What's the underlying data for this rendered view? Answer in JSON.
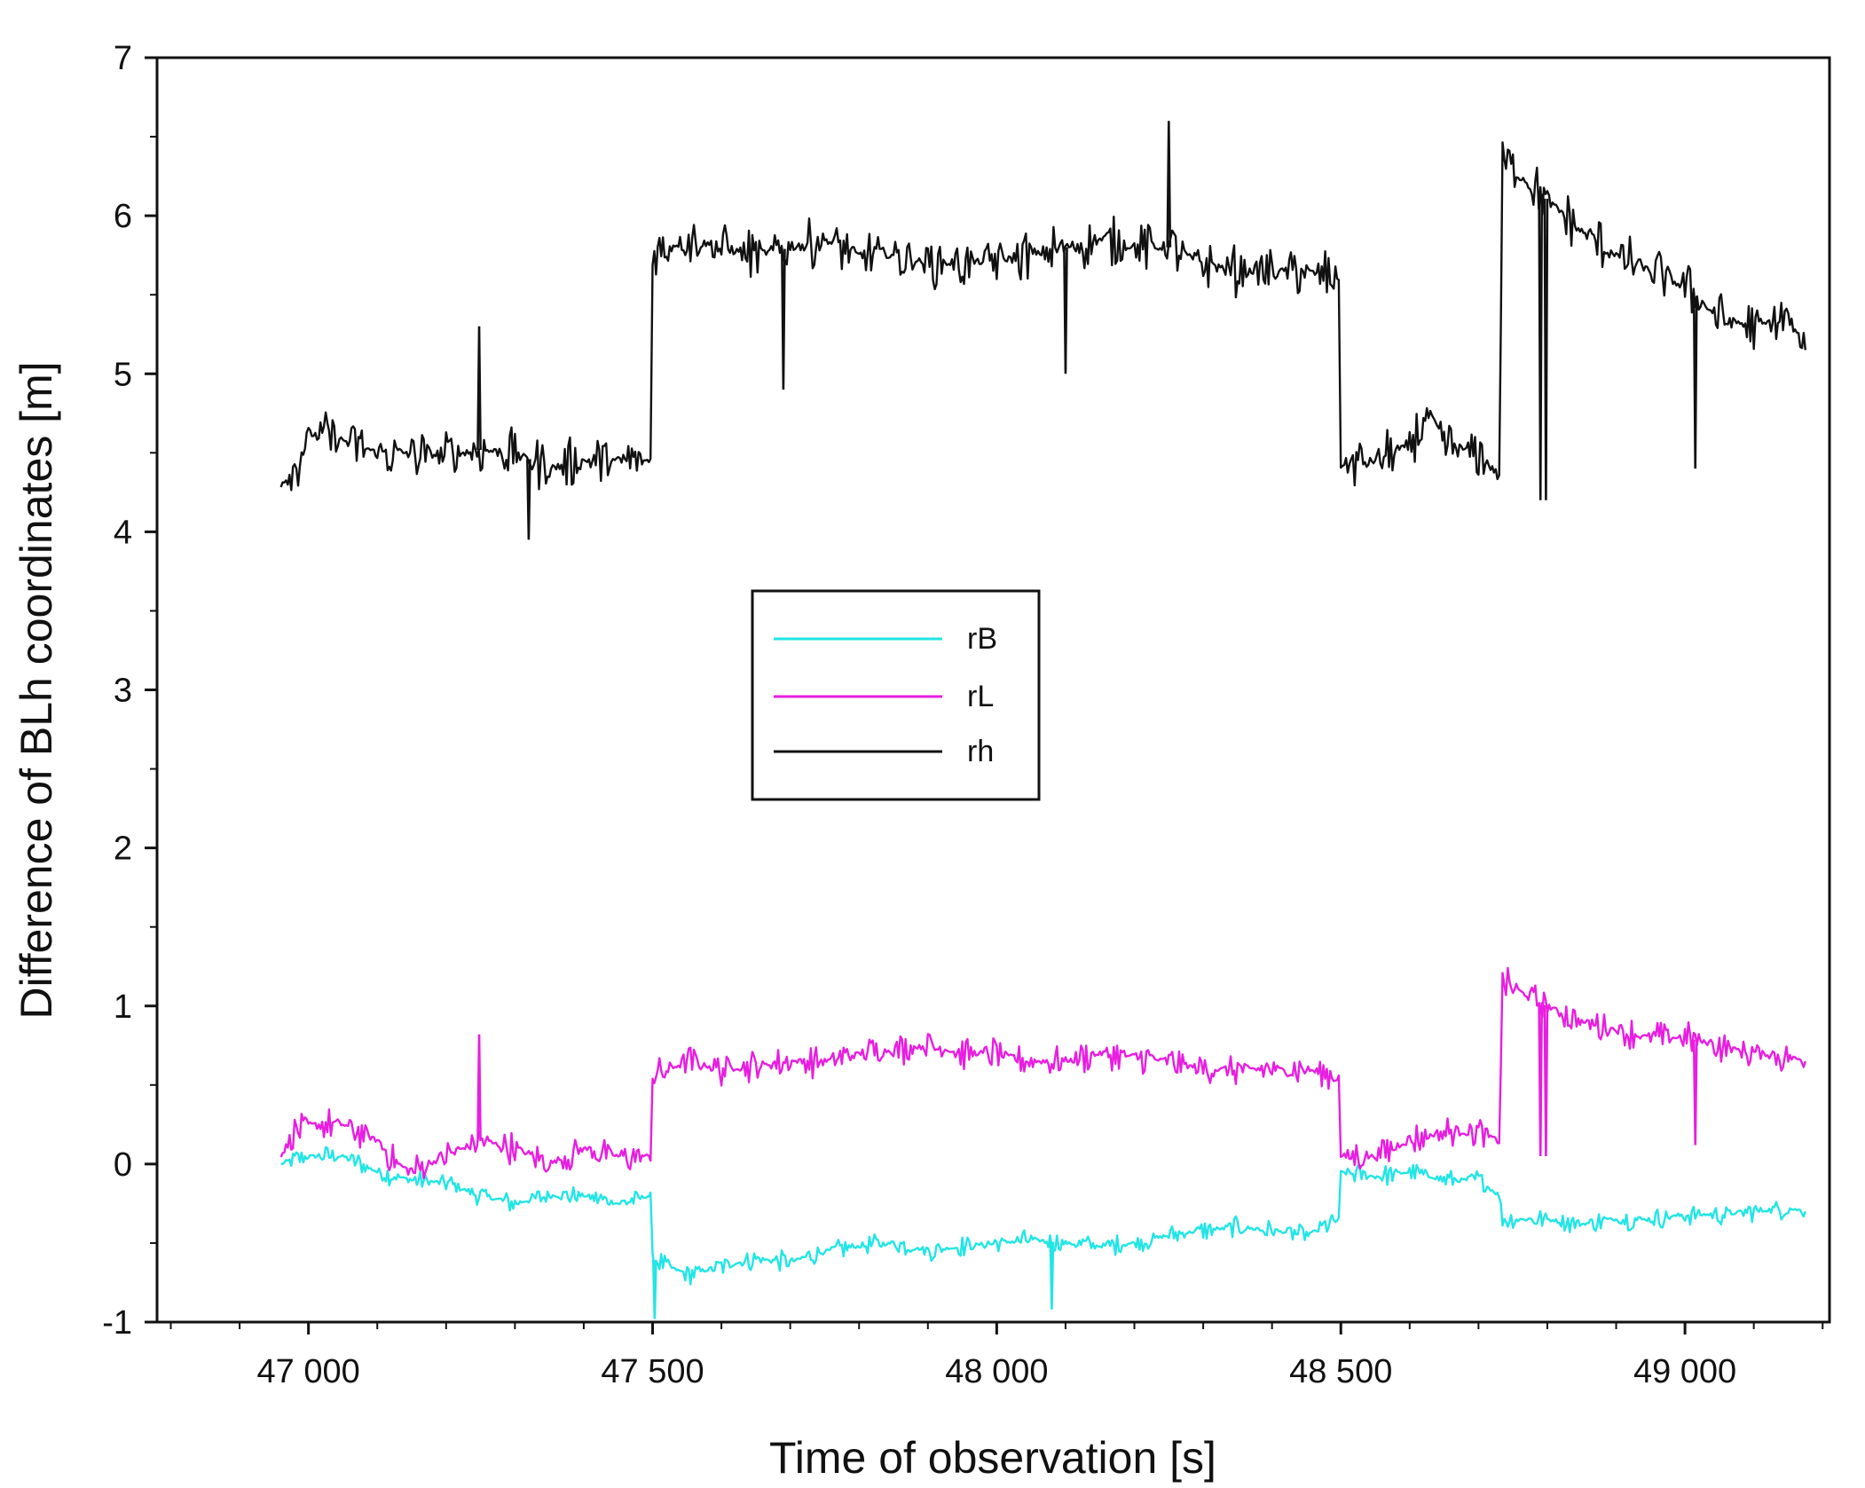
{
  "chart_data": {
    "type": "line",
    "title": "",
    "xlabel": "Time of observation [s]",
    "ylabel": "Difference of BLh coordinates [m]",
    "xlim": [
      46780,
      49210
    ],
    "ylim": [
      -1,
      7
    ],
    "xticks": [
      47000,
      47500,
      48000,
      48500,
      49000
    ],
    "xtick_labels": [
      "47 000",
      "47 500",
      "48 000",
      "48 500",
      "49 000"
    ],
    "yticks": [
      -1,
      0,
      1,
      2,
      3,
      4,
      5,
      6,
      7
    ],
    "ytick_labels": [
      "-1",
      "0",
      "1",
      "2",
      "3",
      "4",
      "5",
      "6",
      "7"
    ],
    "grid": false,
    "legend": {
      "position": "center-left",
      "entries": [
        "rB",
        "rL",
        "rh"
      ]
    },
    "series": [
      {
        "name": "rB",
        "color": "#22e5e5",
        "noise": 0.07,
        "points": [
          [
            46960,
            0.0
          ],
          [
            47000,
            0.05
          ],
          [
            47050,
            0.05
          ],
          [
            47100,
            -0.05
          ],
          [
            47150,
            -0.1
          ],
          [
            47200,
            -0.12
          ],
          [
            47250,
            -0.2
          ],
          [
            47300,
            -0.25
          ],
          [
            47350,
            -0.2
          ],
          [
            47400,
            -0.2
          ],
          [
            47450,
            -0.25
          ],
          [
            47497,
            -0.2
          ],
          [
            47500,
            -0.6
          ],
          [
            47550,
            -0.7
          ],
          [
            47600,
            -0.65
          ],
          [
            47650,
            -0.6
          ],
          [
            47700,
            -0.62
          ],
          [
            47750,
            -0.55
          ],
          [
            47800,
            -0.52
          ],
          [
            47850,
            -0.5
          ],
          [
            47900,
            -0.55
          ],
          [
            47950,
            -0.52
          ],
          [
            48000,
            -0.5
          ],
          [
            48050,
            -0.48
          ],
          [
            48100,
            -0.5
          ],
          [
            48150,
            -0.52
          ],
          [
            48200,
            -0.5
          ],
          [
            48250,
            -0.45
          ],
          [
            48300,
            -0.42
          ],
          [
            48350,
            -0.4
          ],
          [
            48400,
            -0.42
          ],
          [
            48450,
            -0.45
          ],
          [
            48497,
            -0.35
          ],
          [
            48500,
            -0.05
          ],
          [
            48550,
            -0.08
          ],
          [
            48600,
            -0.05
          ],
          [
            48650,
            -0.1
          ],
          [
            48700,
            -0.1
          ],
          [
            48730,
            -0.2
          ],
          [
            48735,
            -0.35
          ],
          [
            48800,
            -0.35
          ],
          [
            48850,
            -0.38
          ],
          [
            48900,
            -0.35
          ],
          [
            48950,
            -0.35
          ],
          [
            49000,
            -0.32
          ],
          [
            49050,
            -0.32
          ],
          [
            49100,
            -0.3
          ],
          [
            49150,
            -0.28
          ],
          [
            49175,
            -0.3
          ]
        ]
      },
      {
        "name": "rL",
        "color": "#e81ee0",
        "noise": 0.11,
        "points": [
          [
            46960,
            0.05
          ],
          [
            46980,
            0.2
          ],
          [
            47000,
            0.25
          ],
          [
            47050,
            0.25
          ],
          [
            47100,
            0.15
          ],
          [
            47130,
            0.0
          ],
          [
            47150,
            -0.05
          ],
          [
            47200,
            0.05
          ],
          [
            47250,
            0.15
          ],
          [
            47300,
            0.1
          ],
          [
            47350,
            0.0
          ],
          [
            47400,
            0.1
          ],
          [
            47450,
            0.05
          ],
          [
            47497,
            0.05
          ],
          [
            47500,
            0.55
          ],
          [
            47550,
            0.65
          ],
          [
            47600,
            0.6
          ],
          [
            47650,
            0.62
          ],
          [
            47700,
            0.65
          ],
          [
            47750,
            0.65
          ],
          [
            47800,
            0.7
          ],
          [
            47850,
            0.72
          ],
          [
            47900,
            0.75
          ],
          [
            47950,
            0.7
          ],
          [
            48000,
            0.7
          ],
          [
            48050,
            0.65
          ],
          [
            48100,
            0.65
          ],
          [
            48150,
            0.7
          ],
          [
            48200,
            0.68
          ],
          [
            48250,
            0.65
          ],
          [
            48300,
            0.6
          ],
          [
            48350,
            0.6
          ],
          [
            48400,
            0.6
          ],
          [
            48450,
            0.6
          ],
          [
            48497,
            0.55
          ],
          [
            48500,
            0.05
          ],
          [
            48550,
            0.05
          ],
          [
            48600,
            0.15
          ],
          [
            48650,
            0.2
          ],
          [
            48700,
            0.2
          ],
          [
            48730,
            0.15
          ],
          [
            48735,
            1.15
          ],
          [
            48800,
            1.0
          ],
          [
            48850,
            0.9
          ],
          [
            48900,
            0.85
          ],
          [
            48950,
            0.8
          ],
          [
            49000,
            0.8
          ],
          [
            49050,
            0.75
          ],
          [
            49100,
            0.7
          ],
          [
            49150,
            0.68
          ],
          [
            49175,
            0.65
          ]
        ]
      },
      {
        "name": "rh",
        "color": "#111111",
        "noise": 0.17,
        "points": [
          [
            46960,
            4.3
          ],
          [
            46980,
            4.4
          ],
          [
            47000,
            4.62
          ],
          [
            47050,
            4.58
          ],
          [
            47100,
            4.5
          ],
          [
            47150,
            4.5
          ],
          [
            47200,
            4.48
          ],
          [
            47250,
            4.52
          ],
          [
            47300,
            4.5
          ],
          [
            47350,
            4.4
          ],
          [
            47400,
            4.45
          ],
          [
            47450,
            4.45
          ],
          [
            47497,
            4.45
          ],
          [
            47500,
            5.75
          ],
          [
            47550,
            5.85
          ],
          [
            47600,
            5.8
          ],
          [
            47650,
            5.75
          ],
          [
            47700,
            5.8
          ],
          [
            47750,
            5.85
          ],
          [
            47800,
            5.75
          ],
          [
            47850,
            5.75
          ],
          [
            47900,
            5.7
          ],
          [
            47950,
            5.7
          ],
          [
            48000,
            5.72
          ],
          [
            48050,
            5.75
          ],
          [
            48100,
            5.8
          ],
          [
            48150,
            5.85
          ],
          [
            48200,
            5.8
          ],
          [
            48250,
            5.8
          ],
          [
            48300,
            5.7
          ],
          [
            48350,
            5.65
          ],
          [
            48400,
            5.65
          ],
          [
            48450,
            5.65
          ],
          [
            48497,
            5.6
          ],
          [
            48500,
            4.42
          ],
          [
            48550,
            4.45
          ],
          [
            48600,
            4.55
          ],
          [
            48630,
            4.75
          ],
          [
            48650,
            4.55
          ],
          [
            48700,
            4.5
          ],
          [
            48730,
            4.35
          ],
          [
            48735,
            6.35
          ],
          [
            48800,
            6.1
          ],
          [
            48850,
            5.9
          ],
          [
            48900,
            5.75
          ],
          [
            48950,
            5.65
          ],
          [
            49000,
            5.55
          ],
          [
            49050,
            5.35
          ],
          [
            49100,
            5.3
          ],
          [
            49150,
            5.35
          ],
          [
            49175,
            5.15
          ]
        ]
      }
    ],
    "spikes": [
      {
        "series": "rh",
        "x": 47248,
        "to": 5.3
      },
      {
        "series": "rh",
        "x": 47320,
        "to": 3.95
      },
      {
        "series": "rh",
        "x": 47690,
        "to": 4.9
      },
      {
        "series": "rh",
        "x": 48100,
        "to": 5.0
      },
      {
        "series": "rh",
        "x": 48250,
        "to": 6.6
      },
      {
        "series": "rh",
        "x": 48790,
        "to": 4.2
      },
      {
        "series": "rh",
        "x": 48798,
        "to": 4.2
      },
      {
        "series": "rh",
        "x": 49015,
        "to": 4.4
      },
      {
        "series": "rL",
        "x": 47248,
        "to": 0.82
      },
      {
        "series": "rL",
        "x": 48790,
        "to": 0.05
      },
      {
        "series": "rL",
        "x": 48798,
        "to": 0.05
      },
      {
        "series": "rL",
        "x": 49015,
        "to": 0.12
      },
      {
        "series": "rB",
        "x": 47503,
        "to": -0.98
      },
      {
        "series": "rB",
        "x": 48080,
        "to": -0.92
      }
    ]
  }
}
